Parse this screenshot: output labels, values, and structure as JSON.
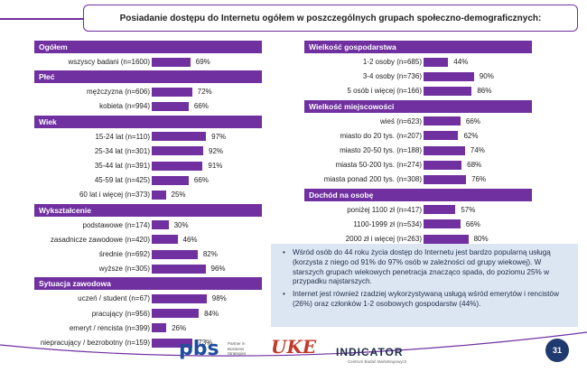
{
  "title": "Posiadanie dostępu do Internetu ogółem w poszczególnych grupach społeczno-demograficznych:",
  "colors": {
    "accent": "#7030a0",
    "notes_bg": "#dce6f2",
    "page_badge": "#1f3a6e"
  },
  "chart_data": {
    "type": "bar",
    "orientation": "horizontal",
    "title": "Posiadanie dostępu do Internetu ogółem w poszczególnych grupach społeczno-demograficznych:",
    "unit": "%",
    "xlim": [
      0,
      100
    ],
    "panels": [
      {
        "groups": [
          {
            "name": "Ogółem",
            "items": [
              {
                "label": "wszyscy badani (n=1600)",
                "value": 69
              }
            ]
          },
          {
            "name": "Płeć",
            "items": [
              {
                "label": "mężczyzna (n=606)",
                "value": 72
              },
              {
                "label": "kobieta (n=994)",
                "value": 66
              }
            ]
          },
          {
            "name": "Wiek",
            "items": [
              {
                "label": "15-24 lat (n=110)",
                "value": 97
              },
              {
                "label": "25-34 lat (n=301)",
                "value": 92
              },
              {
                "label": "35-44 lat (n=391)",
                "value": 91
              },
              {
                "label": "45-59 lat (n=425)",
                "value": 66
              },
              {
                "label": "60 lat i więcej (n=373)",
                "value": 25
              }
            ]
          },
          {
            "name": "Wykształcenie",
            "items": [
              {
                "label": "podstawowe (n=174)",
                "value": 30
              },
              {
                "label": "zasadnicze zawodowe (n=420)",
                "value": 46
              },
              {
                "label": "średnie (n=692)",
                "value": 82
              },
              {
                "label": "wyższe (n=305)",
                "value": 96
              }
            ]
          },
          {
            "name": "Sytuacja zawodowa",
            "items": [
              {
                "label": "uczeń / student (n=67)",
                "value": 98
              },
              {
                "label": "pracujący (n=956)",
                "value": 84
              },
              {
                "label": "emeryt / rencista (n=399)",
                "value": 26
              },
              {
                "label": "niepracujący / bezrobotny (n=159)",
                "value": 73
              }
            ]
          }
        ]
      },
      {
        "groups": [
          {
            "name": "Wielkość gospodarstwa",
            "items": [
              {
                "label": "1-2 osoby (n=685)",
                "value": 44
              },
              {
                "label": "3-4 osoby (n=736)",
                "value": 90
              },
              {
                "label": "5 osób i więcej (n=166)",
                "value": 86
              }
            ]
          },
          {
            "name": "Wielkość miejscowości",
            "items": [
              {
                "label": "wieś (n=623)",
                "value": 66
              },
              {
                "label": "miasto do 20 tys. (n=207)",
                "value": 62
              },
              {
                "label": "miasto 20-50 tys. (n=188)",
                "value": 74
              },
              {
                "label": "miasta 50-200 tys. (n=274)",
                "value": 68
              },
              {
                "label": "miasta ponad 200 tys. (n=308)",
                "value": 76
              }
            ]
          },
          {
            "name": "Dochód na osobę",
            "items": [
              {
                "label": "poniżej 1100 zł (n=417)",
                "value": 57
              },
              {
                "label": "1100-1999 zł (n=534)",
                "value": 66
              },
              {
                "label": "2000 zł i więcej (n=263)",
                "value": 80
              }
            ]
          }
        ]
      }
    ]
  },
  "notes": [
    "Wśród osób do 44 roku życia dostęp do Internetu jest bardzo popularną usługą (korzysta z niego od 91% do 97% osób w zależności od grupy wiekowej). W starszych grupach wiekowych penetracja znacząco spada, do poziomu 25% w przypadku najstarszych.",
    "Internet jest również rzadziej wykorzystywaną usługą wśród emerytów i rencistów (26%) oraz członków 1-2 osobowych gospodarstw (44%)."
  ],
  "footer": {
    "logo_pbs": "pbs",
    "logo_pbs_sub": "Partner in Business Strategies",
    "logo_uke": "UKE",
    "logo_indicator": "INDICATOR",
    "logo_indicator_sub": "Centrum Badań Marketingowych",
    "page_number": "31"
  }
}
